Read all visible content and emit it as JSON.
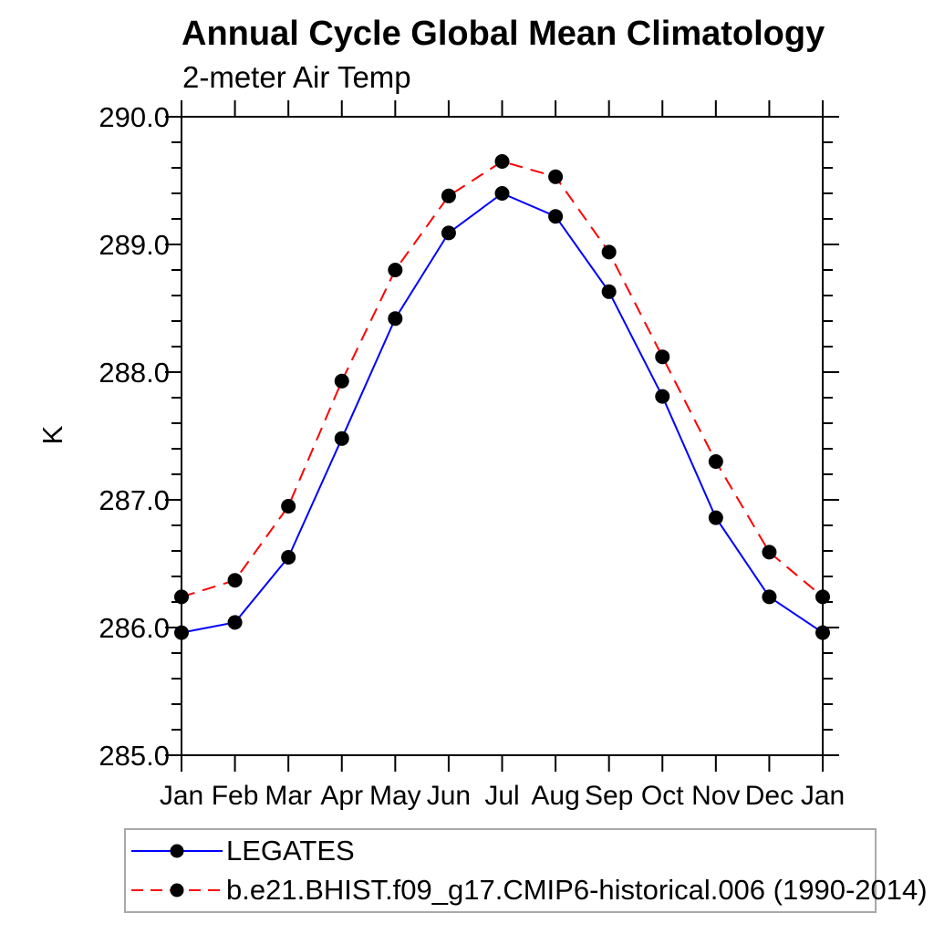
{
  "header": {
    "title": "Annual Cycle Global Mean Climatology",
    "subtitle": "2-meter Air Temp"
  },
  "chart_data": {
    "type": "line",
    "title": "Annual Cycle Global Mean Climatology",
    "subtitle": "2-meter Air Temp",
    "xlabel": "",
    "ylabel": "K",
    "x_categories": [
      "Jan",
      "Feb",
      "Mar",
      "Apr",
      "May",
      "Jun",
      "Jul",
      "Aug",
      "Sep",
      "Oct",
      "Nov",
      "Dec",
      "Jan"
    ],
    "ylim": [
      285.0,
      290.0
    ],
    "ytick_major_step": 1.0,
    "ytick_minor_step": 0.2,
    "ytick_labels": [
      "285.0",
      "286.0",
      "287.0",
      "288.0",
      "289.0",
      "290.0"
    ],
    "grid": false,
    "legend_position": "bottom-left-boxed",
    "marker": {
      "shape": "circle",
      "color": "#000000"
    },
    "series": [
      {
        "name": "LEGATES",
        "color": "#0000ff",
        "line_style": "solid",
        "values": [
          285.96,
          286.04,
          286.55,
          287.48,
          288.42,
          289.09,
          289.4,
          289.22,
          288.63,
          287.81,
          286.86,
          286.24,
          285.96
        ]
      },
      {
        "name": "b.e21.BHIST.f09_g17.CMIP6-historical.006 (1990-2014)",
        "color": "#ff0000",
        "line_style": "dashed",
        "values": [
          286.24,
          286.37,
          286.95,
          287.93,
          288.8,
          289.38,
          289.65,
          289.53,
          288.94,
          288.12,
          287.3,
          286.59,
          286.24
        ]
      }
    ]
  }
}
